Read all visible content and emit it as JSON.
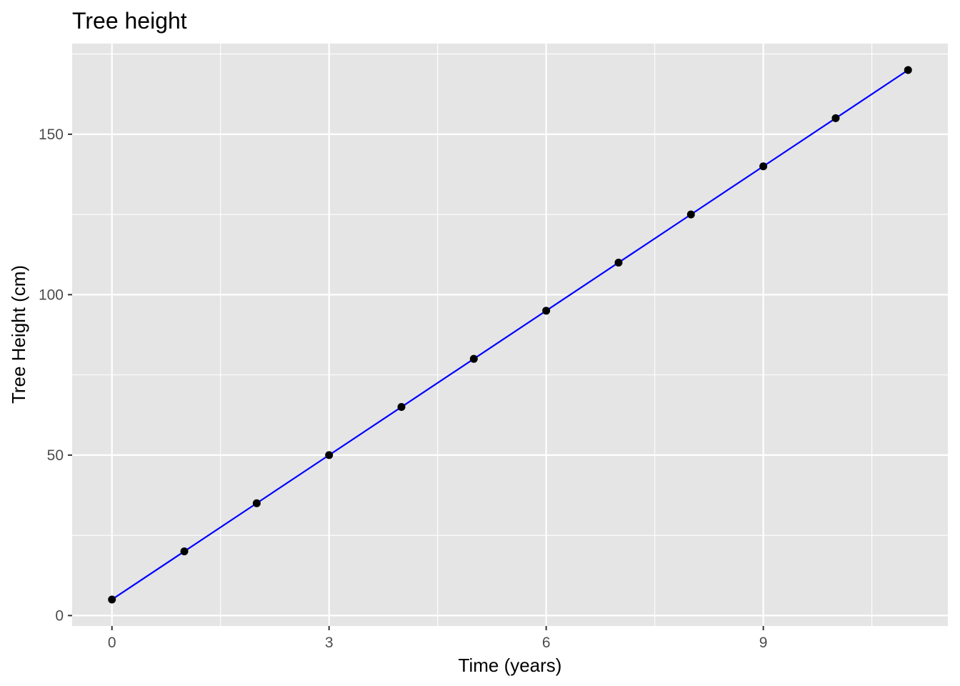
{
  "chart_data": {
    "type": "line",
    "title": "Tree height",
    "xlabel": "Time (years)",
    "ylabel": "Tree Height (cm)",
    "x": [
      0,
      1,
      2,
      3,
      4,
      5,
      6,
      7,
      8,
      9,
      10,
      11
    ],
    "series": [
      {
        "values": [
          5,
          20,
          35,
          50,
          65,
          80,
          95,
          110,
          125,
          140,
          155,
          170
        ],
        "line_color": "#0000ff",
        "point_color": "#000000"
      }
    ],
    "xlim": [
      -0.55,
      11.55
    ],
    "ylim": [
      -3.25,
      178.25
    ],
    "x_ticks": [
      0,
      3,
      6,
      9
    ],
    "y_ticks": [
      0,
      50,
      100,
      150
    ],
    "x_tick_labels": [
      "0",
      "3",
      "6",
      "9"
    ],
    "y_tick_labels": [
      "0",
      "50",
      "100",
      "150"
    ],
    "grid": true,
    "panel_background": "#e5e5e5",
    "grid_color": "#ffffff"
  }
}
